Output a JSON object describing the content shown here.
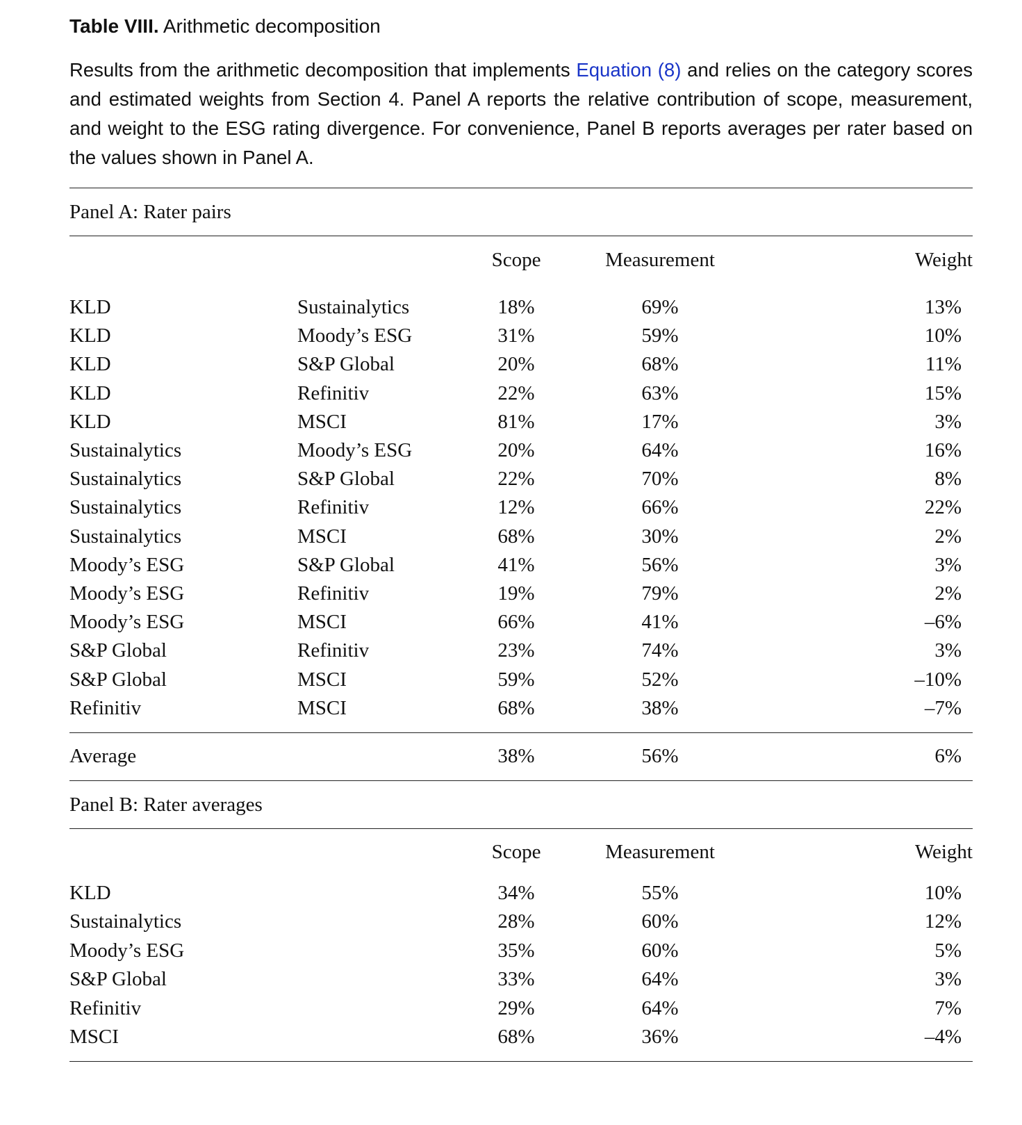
{
  "caption": {
    "label": "Table VIII.",
    "title": " Arithmetic decomposition",
    "text_before_link": "Results from the arithmetic decomposition that implements ",
    "link_text": "Equation (8)",
    "text_after_link": " and relies on the category scores and estimated weights from Section 4. Panel A reports the relative contribution of scope, measurement, and weight to the ESG rating divergence. For convenience, Panel B reports averages per rater based on the values shown in Panel A."
  },
  "colors": {
    "link": "#1a35c8",
    "rule": "#222222"
  },
  "columns": {
    "scope": "Scope",
    "measurement": "Measurement",
    "weight": "Weight"
  },
  "panel_a": {
    "title": "Panel A: Rater pairs",
    "rows": [
      {
        "rater1": "KLD",
        "rater2": "Sustainalytics",
        "scope": "18%",
        "measurement": "69%",
        "weight": "13%"
      },
      {
        "rater1": "KLD",
        "rater2": "Moody’s ESG",
        "scope": "31%",
        "measurement": "59%",
        "weight": "10%"
      },
      {
        "rater1": "KLD",
        "rater2": "S&P Global",
        "scope": "20%",
        "measurement": "68%",
        "weight": "11%"
      },
      {
        "rater1": "KLD",
        "rater2": "Refinitiv",
        "scope": "22%",
        "measurement": "63%",
        "weight": "15%"
      },
      {
        "rater1": "KLD",
        "rater2": "MSCI",
        "scope": "81%",
        "measurement": "17%",
        "weight": "3%"
      },
      {
        "rater1": "Sustainalytics",
        "rater2": "Moody’s ESG",
        "scope": "20%",
        "measurement": "64%",
        "weight": "16%"
      },
      {
        "rater1": "Sustainalytics",
        "rater2": "S&P Global",
        "scope": "22%",
        "measurement": "70%",
        "weight": "8%"
      },
      {
        "rater1": "Sustainalytics",
        "rater2": "Refinitiv",
        "scope": "12%",
        "measurement": "66%",
        "weight": "22%"
      },
      {
        "rater1": "Sustainalytics",
        "rater2": "MSCI",
        "scope": "68%",
        "measurement": "30%",
        "weight": "2%"
      },
      {
        "rater1": "Moody’s ESG",
        "rater2": "S&P Global",
        "scope": "41%",
        "measurement": "56%",
        "weight": "3%"
      },
      {
        "rater1": "Moody’s ESG",
        "rater2": "Refinitiv",
        "scope": "19%",
        "measurement": "79%",
        "weight": "2%"
      },
      {
        "rater1": "Moody’s ESG",
        "rater2": "MSCI",
        "scope": "66%",
        "measurement": "41%",
        "weight": "–6%"
      },
      {
        "rater1": "S&P Global",
        "rater2": "Refinitiv",
        "scope": "23%",
        "measurement": "74%",
        "weight": "3%"
      },
      {
        "rater1": "S&P Global",
        "rater2": "MSCI",
        "scope": "59%",
        "measurement": "52%",
        "weight": "–10%"
      },
      {
        "rater1": "Refinitiv",
        "rater2": "MSCI",
        "scope": "68%",
        "measurement": "38%",
        "weight": "–7%"
      }
    ],
    "average": {
      "label": "Average",
      "scope": "38%",
      "measurement": "56%",
      "weight": "6%"
    }
  },
  "panel_b": {
    "title": "Panel B: Rater averages",
    "rows": [
      {
        "rater": "KLD",
        "scope": "34%",
        "measurement": "55%",
        "weight": "10%"
      },
      {
        "rater": "Sustainalytics",
        "scope": "28%",
        "measurement": "60%",
        "weight": "12%"
      },
      {
        "rater": "Moody’s ESG",
        "scope": "35%",
        "measurement": "60%",
        "weight": "5%"
      },
      {
        "rater": "S&P Global",
        "scope": "33%",
        "measurement": "64%",
        "weight": "3%"
      },
      {
        "rater": "Refinitiv",
        "scope": "29%",
        "measurement": "64%",
        "weight": "7%"
      },
      {
        "rater": "MSCI",
        "scope": "68%",
        "measurement": "36%",
        "weight": "–4%"
      }
    ]
  }
}
